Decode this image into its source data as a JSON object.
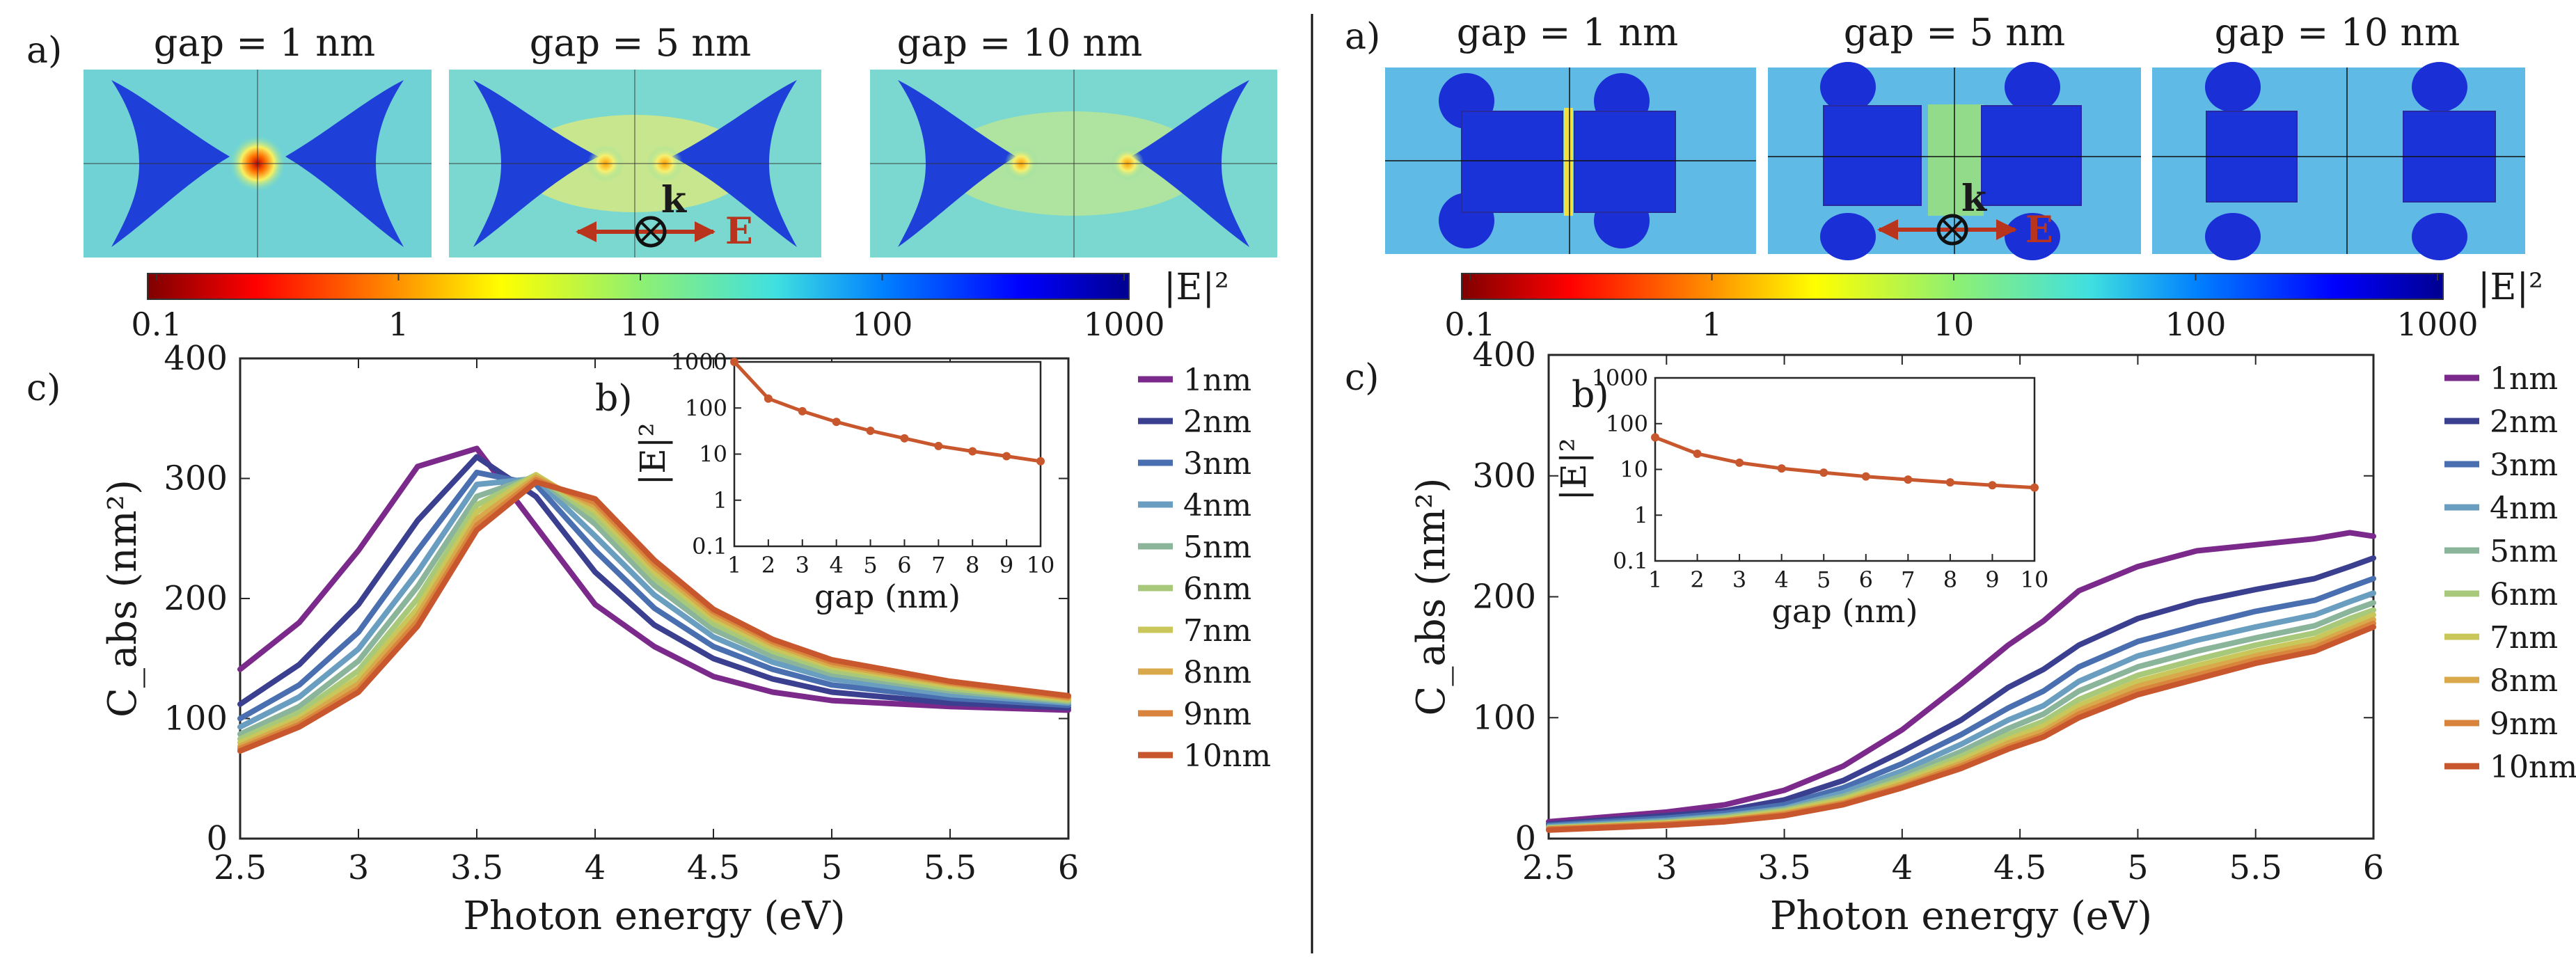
{
  "labels": {
    "panel_a": "a)",
    "panel_b": "b)",
    "panel_c": "c)",
    "k_vector": "k",
    "e_field": "E",
    "cbar_label": "|E|²"
  },
  "left": {
    "maps": [
      {
        "title": "gap = 1 nm",
        "gap": 1
      },
      {
        "title": "gap = 5 nm",
        "gap": 5
      },
      {
        "title": "gap = 10 nm",
        "gap": 10
      }
    ],
    "colorbar": {
      "ticks": [
        "0.1",
        "1",
        "10",
        "100",
        "1000"
      ],
      "values": [
        0.1,
        1,
        10,
        100,
        1000
      ],
      "scale": "log"
    }
  },
  "right": {
    "maps": [
      {
        "title": "gap = 1 nm",
        "gap": 1
      },
      {
        "title": "gap = 5 nm",
        "gap": 5
      },
      {
        "title": "gap = 10 nm",
        "gap": 10
      }
    ],
    "colorbar": {
      "ticks": [
        "0.1",
        "1",
        "10",
        "100",
        "1000"
      ],
      "values": [
        0.1,
        1,
        10,
        100,
        1000
      ],
      "scale": "log"
    }
  },
  "palette": [
    "#7b2a8c",
    "#3b3f8f",
    "#4a6fb0",
    "#6a9ec0",
    "#8ab59a",
    "#a8c97a",
    "#c9c75a",
    "#d9a84a",
    "#d8843c",
    "#c8572e"
  ],
  "chart_data": [
    {
      "id": "left_main",
      "type": "line",
      "xlabel": "Photon energy (eV)",
      "ylabel": "C_abs (nm²)",
      "xlim": [
        2.5,
        6
      ],
      "ylim": [
        0,
        400
      ],
      "xticks": [
        2.5,
        3,
        3.5,
        4,
        4.5,
        5,
        5.5,
        6
      ],
      "xticklabels": [
        "2.5",
        "3",
        "3.5",
        "4",
        "4.5",
        "5",
        "5.5",
        "6"
      ],
      "yticks": [
        0,
        100,
        200,
        300,
        400
      ],
      "yticklabels": [
        "0",
        "100",
        "200",
        "300",
        "400"
      ],
      "x": [
        2.5,
        2.75,
        3.0,
        3.25,
        3.5,
        3.75,
        4.0,
        4.25,
        4.5,
        4.75,
        5.0,
        5.5,
        6.0
      ],
      "series": [
        {
          "name": "1nm",
          "values": [
            141,
            180,
            240,
            310,
            325,
            260,
            195,
            160,
            135,
            122,
            115,
            110,
            107
          ]
        },
        {
          "name": "2nm",
          "values": [
            112,
            145,
            195,
            265,
            318,
            285,
            222,
            178,
            150,
            133,
            122,
            113,
            109
          ]
        },
        {
          "name": "3nm",
          "values": [
            100,
            128,
            172,
            240,
            305,
            295,
            240,
            192,
            160,
            141,
            128,
            117,
            111
          ]
        },
        {
          "name": "4nm",
          "values": [
            93,
            118,
            158,
            222,
            295,
            300,
            252,
            203,
            168,
            147,
            133,
            120,
            113
          ]
        },
        {
          "name": "5nm",
          "values": [
            87,
            110,
            148,
            210,
            285,
            302,
            262,
            211,
            174,
            152,
            137,
            123,
            114
          ]
        },
        {
          "name": "6nm",
          "values": [
            83,
            105,
            140,
            200,
            278,
            303,
            268,
            217,
            179,
            156,
            140,
            125,
            115
          ]
        },
        {
          "name": "7nm",
          "values": [
            80,
            101,
            134,
            192,
            272,
            303,
            273,
            222,
            183,
            159,
            143,
            127,
            116
          ]
        },
        {
          "name": "8nm",
          "values": [
            77,
            98,
            129,
            186,
            266,
            301,
            277,
            226,
            186,
            162,
            145,
            129,
            117
          ]
        },
        {
          "name": "9nm",
          "values": [
            75,
            95,
            125,
            181,
            261,
            299,
            280,
            229,
            189,
            164,
            147,
            130,
            118
          ]
        },
        {
          "name": "10nm",
          "values": [
            73,
            93,
            122,
            177,
            257,
            297,
            283,
            232,
            191,
            166,
            149,
            131,
            119
          ]
        }
      ],
      "legend": "right-outside"
    },
    {
      "id": "left_inset",
      "type": "line",
      "xlabel": "gap (nm)",
      "ylabel": "|E|²",
      "yscale": "log",
      "xlim": [
        1,
        10
      ],
      "ylim": [
        0.1,
        1000
      ],
      "xticks": [
        1,
        2,
        3,
        4,
        5,
        6,
        7,
        8,
        9,
        10
      ],
      "xticklabels": [
        "1",
        "2",
        "3",
        "4",
        "5",
        "6",
        "7",
        "8",
        "9",
        "10"
      ],
      "yticks": [
        0.1,
        1,
        10,
        100,
        1000
      ],
      "yticklabels": [
        "0.1",
        "1",
        "10",
        "100",
        "1000"
      ],
      "x": [
        1,
        2,
        3,
        4,
        5,
        6,
        7,
        8,
        9,
        10
      ],
      "values": [
        1000,
        160,
        85,
        50,
        32,
        22,
        15,
        11.5,
        9,
        7
      ]
    },
    {
      "id": "right_main",
      "type": "line",
      "xlabel": "Photon energy (eV)",
      "ylabel": "C_abs (nm²)",
      "xlim": [
        2.5,
        6
      ],
      "ylim": [
        0,
        400
      ],
      "xticks": [
        2.5,
        3,
        3.5,
        4,
        4.5,
        5,
        5.5,
        6
      ],
      "xticklabels": [
        "2.5",
        "3",
        "3.5",
        "4",
        "4.5",
        "5",
        "5.5",
        "6"
      ],
      "yticks": [
        0,
        100,
        200,
        300,
        400
      ],
      "yticklabels": [
        "0",
        "100",
        "200",
        "300",
        "400"
      ],
      "x": [
        2.5,
        3.0,
        3.25,
        3.5,
        3.75,
        4.0,
        4.25,
        4.45,
        4.6,
        4.75,
        5.0,
        5.25,
        5.5,
        5.75,
        5.9,
        6.0
      ],
      "series": [
        {
          "name": "1nm",
          "values": [
            14,
            22,
            28,
            40,
            60,
            90,
            128,
            160,
            180,
            205,
            225,
            238,
            243,
            248,
            253,
            250
          ]
        },
        {
          "name": "2nm",
          "values": [
            12,
            19,
            23,
            32,
            48,
            72,
            98,
            125,
            140,
            160,
            182,
            196,
            206,
            215,
            225,
            232
          ]
        },
        {
          "name": "3nm",
          "values": [
            11,
            17,
            21,
            28,
            42,
            62,
            86,
            108,
            122,
            142,
            163,
            176,
            188,
            197,
            208,
            215
          ]
        },
        {
          "name": "4nm",
          "values": [
            10,
            15,
            19,
            25,
            38,
            56,
            78,
            98,
            110,
            130,
            151,
            164,
            175,
            185,
            196,
            203
          ]
        },
        {
          "name": "5nm",
          "values": [
            9,
            14,
            18,
            24,
            35,
            52,
            72,
            91,
            103,
            122,
            142,
            155,
            166,
            176,
            188,
            195
          ]
        },
        {
          "name": "6nm",
          "values": [
            9,
            13,
            17,
            23,
            33,
            49,
            68,
            86,
            97,
            115,
            135,
            148,
            160,
            170,
            182,
            189
          ]
        },
        {
          "name": "7nm",
          "values": [
            8,
            13,
            16,
            22,
            32,
            47,
            65,
            82,
            93,
            110,
            130,
            143,
            155,
            165,
            177,
            185
          ]
        },
        {
          "name": "8nm",
          "values": [
            8,
            12,
            15,
            21,
            30,
            45,
            62,
            79,
            89,
            106,
            126,
            139,
            151,
            161,
            173,
            181
          ]
        },
        {
          "name": "9nm",
          "values": [
            8,
            12,
            15,
            20,
            29,
            43,
            60,
            76,
            86,
            103,
            122,
            135,
            148,
            158,
            170,
            178
          ]
        },
        {
          "name": "10nm",
          "values": [
            7,
            11,
            14,
            19,
            28,
            42,
            58,
            74,
            84,
            100,
            119,
            132,
            145,
            155,
            167,
            175
          ]
        }
      ],
      "legend": "right-outside"
    },
    {
      "id": "right_inset",
      "type": "line",
      "xlabel": "gap (nm)",
      "ylabel": "|E|²",
      "yscale": "log",
      "xlim": [
        1,
        10
      ],
      "ylim": [
        0.1,
        1000
      ],
      "xticks": [
        1,
        2,
        3,
        4,
        5,
        6,
        7,
        8,
        9,
        10
      ],
      "xticklabels": [
        "1",
        "2",
        "3",
        "4",
        "5",
        "6",
        "7",
        "8",
        "9",
        "10"
      ],
      "yticks": [
        0.1,
        1,
        10,
        100,
        1000
      ],
      "yticklabels": [
        "0.1",
        "1",
        "10",
        "100",
        "1000"
      ],
      "x": [
        1,
        2,
        3,
        4,
        5,
        6,
        7,
        8,
        9,
        10
      ],
      "values": [
        50,
        22,
        14,
        10.5,
        8.5,
        7,
        6,
        5.2,
        4.5,
        4
      ]
    }
  ]
}
